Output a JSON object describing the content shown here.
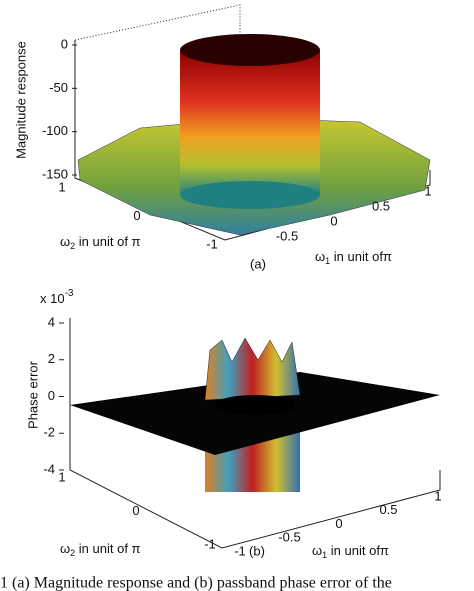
{
  "panels": [
    {
      "ylabel": "Magnitude response",
      "zticks": [
        0,
        -50,
        -100,
        -150
      ],
      "w2ticks": [
        1,
        0,
        -1
      ],
      "w1ticks": [
        -0.5,
        0,
        0.5,
        1
      ],
      "w2label": {
        "symbol": "ω",
        "sub": "2",
        "text": " in unit of π"
      },
      "w1label": {
        "symbol": "ω",
        "sub": "1",
        "text": " in unit ofπ"
      },
      "tag": "(a)"
    },
    {
      "ylabel": "Phase error",
      "multiplier": "x 10",
      "multiplier_exp": "-3",
      "zticks": [
        4,
        2,
        0,
        -2,
        -4
      ],
      "w2ticks": [
        1,
        0,
        -1
      ],
      "w1ticks": [
        -1,
        -0.5,
        0,
        0.5,
        1
      ],
      "w2label": {
        "symbol": "ω",
        "sub": "2",
        "text": " in unit of π"
      },
      "w1label": {
        "symbol": "ω",
        "sub": "1",
        "text": " in unit ofπ"
      },
      "tag": "(b)"
    }
  ],
  "caption": "1 (a) Magnitude response and (b) passband phase error of the"
}
